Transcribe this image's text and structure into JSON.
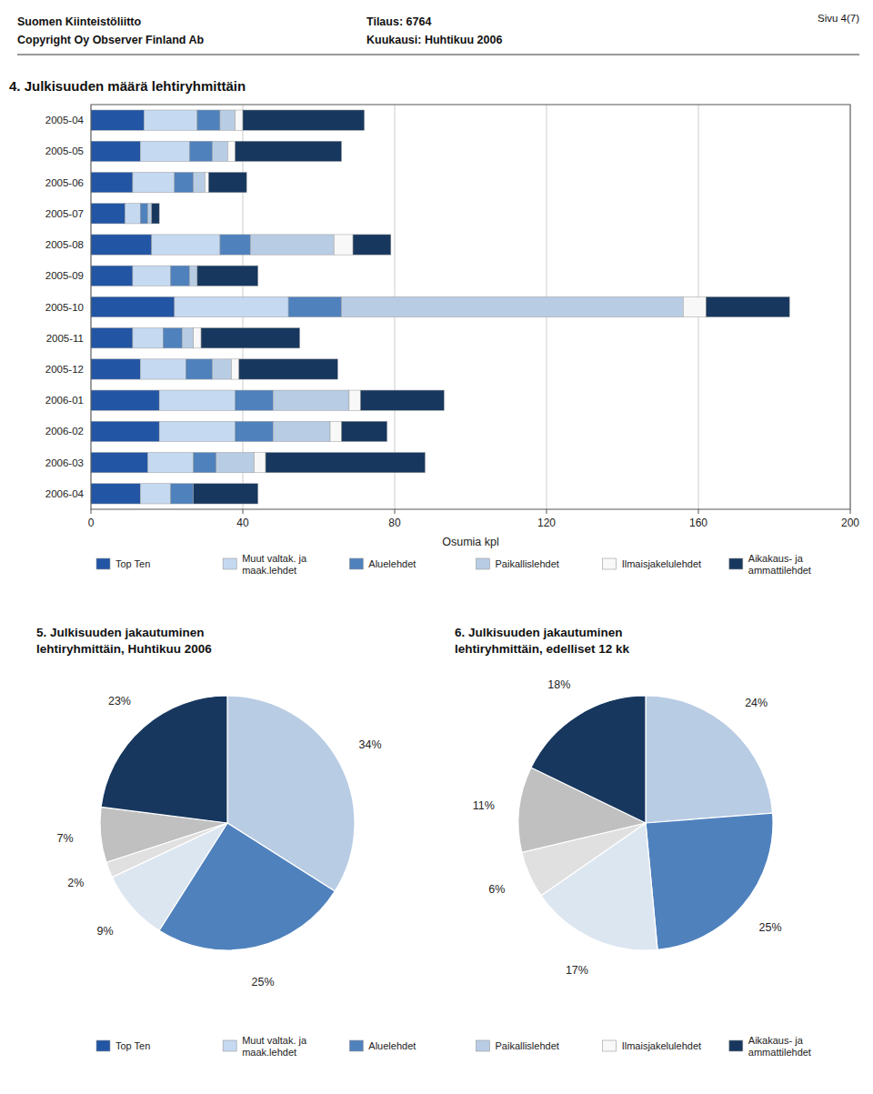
{
  "chart_data": [
    {
      "type": "bar",
      "orientation": "horizontal",
      "stacked": true,
      "title": "4. Julkisuuden määrä lehtiryhmittäin",
      "annotations": [
        "Suomen Kiinteistöliitto",
        "Copyright Oy Observer Finland Ab",
        "Tilaus:  6764",
        "Kuukausi: Huhtikuu 2006",
        "Sivu 4(7)"
      ],
      "xlabel": "Osumia kpl",
      "categories": [
        "2005-04",
        "2005-05",
        "2005-06",
        "2005-07",
        "2005-08",
        "2005-09",
        "2005-10",
        "2005-11",
        "2005-12",
        "2006-01",
        "2006-02",
        "2006-03",
        "2006-04"
      ],
      "series": [
        {
          "name": "Top Ten",
          "color": "#2255a4",
          "values": [
            14,
            13,
            11,
            9,
            16,
            11,
            22,
            11,
            13,
            18,
            18,
            15,
            13
          ]
        },
        {
          "name": "Muut valtak. ja\nmaak.lehdet",
          "color": "#c5d9f1",
          "values": [
            14,
            13,
            11,
            4,
            18,
            10,
            30,
            8,
            12,
            20,
            20,
            12,
            8
          ]
        },
        {
          "name": "Aluelehdet",
          "color": "#4f81bd",
          "values": [
            6,
            6,
            5,
            2,
            8,
            5,
            14,
            5,
            7,
            10,
            10,
            6,
            6
          ]
        },
        {
          "name": "Paikallislehdet",
          "color": "#b8cce4",
          "values": [
            4,
            4,
            3,
            1,
            22,
            2,
            90,
            3,
            5,
            20,
            15,
            10,
            0
          ]
        },
        {
          "name": "Ilmaisjakelulehdet",
          "color": "#f8f8f8",
          "values": [
            2,
            2,
            1,
            0,
            5,
            0,
            6,
            2,
            2,
            3,
            3,
            3,
            0
          ]
        },
        {
          "name": "Aikakaus- ja\nammattilehdet",
          "color": "#17375e",
          "values": [
            32,
            28,
            10,
            2,
            10,
            16,
            22,
            26,
            26,
            22,
            12,
            42,
            17
          ]
        }
      ],
      "xlim": [
        0,
        200
      ],
      "xticks": [
        0,
        40,
        80,
        120,
        160,
        200
      ],
      "grid": true,
      "legend": "bottom"
    },
    {
      "type": "pie",
      "title": "5. Julkisuuden jakautuminen\nlehtiryhmittäin, Huhtikuu 2006",
      "values": [
        34,
        25,
        9,
        2,
        7,
        23
      ],
      "value_labels": [
        "34%",
        "25%",
        "9%",
        "2%",
        "7%",
        "23%"
      ],
      "colors": [
        "#b8cce4",
        "#4f81bd",
        "#dce6f1",
        "#e0e0e0",
        "#c0c0c0",
        "#17375e"
      ],
      "data_labels": true
    },
    {
      "type": "pie",
      "title": "6. Julkisuuden jakautuminen\nlehtiryhmittäin, edelliset 12 kk",
      "values": [
        24,
        25,
        17,
        6,
        11,
        18
      ],
      "value_labels": [
        "24%",
        "25%",
        "17%",
        "6%",
        "11%",
        "18%"
      ],
      "colors": [
        "#b8cce4",
        "#4f81bd",
        "#dce6f1",
        "#e0e0e0",
        "#c0c0c0",
        "#17375e"
      ],
      "data_labels": true
    }
  ]
}
